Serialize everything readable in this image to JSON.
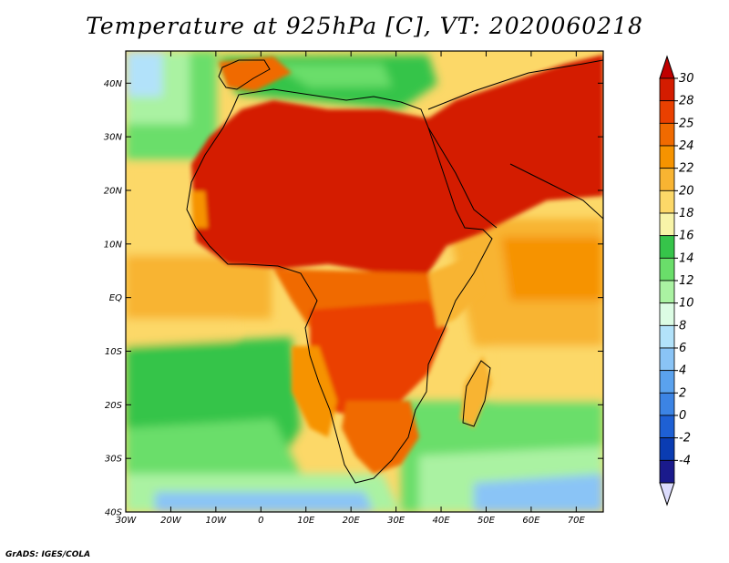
{
  "title": "Temperature at 925hPa [C], VT: 2020060218",
  "credit": "GrADS: IGES/COLA",
  "map": {
    "projection": "lat-lon",
    "lon_range": [
      -30,
      76
    ],
    "lat_range": [
      -40,
      46
    ],
    "lon_ticks": [
      {
        "value": -30,
        "label": "30W"
      },
      {
        "value": -20,
        "label": "20W"
      },
      {
        "value": -10,
        "label": "10W"
      },
      {
        "value": 0,
        "label": "0"
      },
      {
        "value": 10,
        "label": "10E"
      },
      {
        "value": 20,
        "label": "20E"
      },
      {
        "value": 30,
        "label": "30E"
      },
      {
        "value": 40,
        "label": "40E"
      },
      {
        "value": 50,
        "label": "50E"
      },
      {
        "value": 60,
        "label": "60E"
      },
      {
        "value": 70,
        "label": "70E"
      }
    ],
    "lat_ticks": [
      {
        "value": 40,
        "label": "40N"
      },
      {
        "value": 30,
        "label": "30N"
      },
      {
        "value": 20,
        "label": "20N"
      },
      {
        "value": 10,
        "label": "10N"
      },
      {
        "value": 0,
        "label": "EQ"
      },
      {
        "value": -10,
        "label": "10S"
      },
      {
        "value": -20,
        "label": "20S"
      },
      {
        "value": -30,
        "label": "30S"
      },
      {
        "value": -40,
        "label": "40S"
      }
    ]
  },
  "colorbar": {
    "labels": [
      "30",
      "28",
      "25",
      "24",
      "22",
      "20",
      "18",
      "16",
      "14",
      "12",
      "10",
      "8",
      "6",
      "4",
      "2",
      "0",
      "-2",
      "-4"
    ],
    "colors": [
      "#d41c00",
      "#ea4000",
      "#f06a00",
      "#f69300",
      "#f8b432",
      "#fcd868",
      "#f8f4a8",
      "#36c44a",
      "#6ade6a",
      "#aaf2a2",
      "#dcfce4",
      "#b2e2fa",
      "#8ac4f6",
      "#5aa2ee",
      "#3c84e4",
      "#1e60d4",
      "#0a3cb2",
      "#1a1a8c"
    ],
    "top_arrow_color": "#c00000",
    "bottom_arrow_color": "#dcdcfc"
  }
}
